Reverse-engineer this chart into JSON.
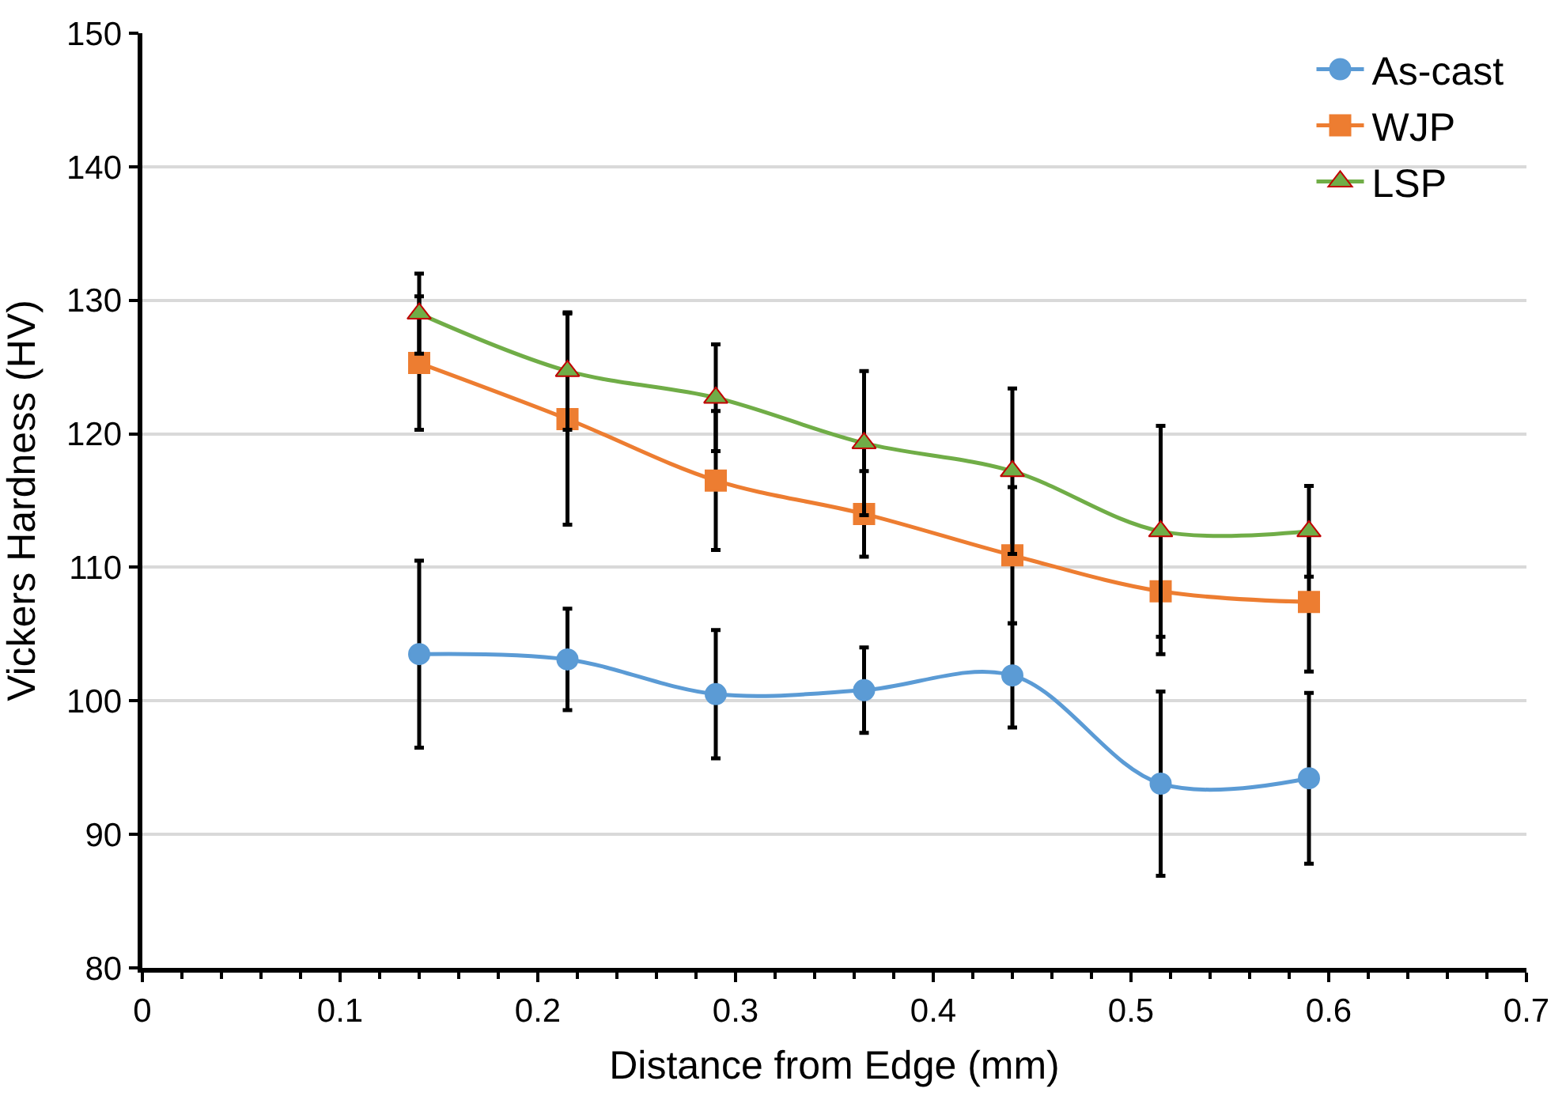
{
  "chart_data": {
    "type": "line",
    "xlabel": "Distance from Edge (mm)",
    "ylabel": "Vickers Hardness (HV)",
    "x": [
      0.14,
      0.215,
      0.29,
      0.365,
      0.44,
      0.515,
      0.59
    ],
    "series": [
      {
        "name": "As-cast",
        "color": "#5b9bd5",
        "marker": "circle",
        "values": [
          103.5,
          103.1,
          100.5,
          100.8,
          101.9,
          93.8,
          94.2
        ],
        "errors": [
          7,
          3.8,
          4.8,
          3.2,
          3.9,
          6.9,
          6.4
        ]
      },
      {
        "name": "WJP",
        "color": "#ed7d31",
        "marker": "square",
        "values": [
          125.3,
          121.1,
          116.5,
          114.0,
          110.9,
          108.2,
          107.4
        ],
        "errors": [
          5,
          7.9,
          5.2,
          3.2,
          5.1,
          4.7,
          5.2
        ]
      },
      {
        "name": "LSP",
        "color": "#70ad47",
        "marker": "triangle",
        "values": [
          129.0,
          124.7,
          122.7,
          119.3,
          117.2,
          112.7,
          112.7
        ],
        "errors": [
          3,
          4.4,
          4,
          5.4,
          6.2,
          7.9,
          3.4
        ]
      }
    ],
    "xlim": [
      0,
      0.7
    ],
    "xticks": [
      0,
      0.1,
      0.2,
      0.3,
      0.4,
      0.5,
      0.6,
      0.7
    ],
    "ylim": [
      80,
      150
    ],
    "yticks": [
      80,
      90,
      100,
      110,
      120,
      130,
      140,
      150
    ],
    "grid": "y",
    "legend": "top right"
  }
}
